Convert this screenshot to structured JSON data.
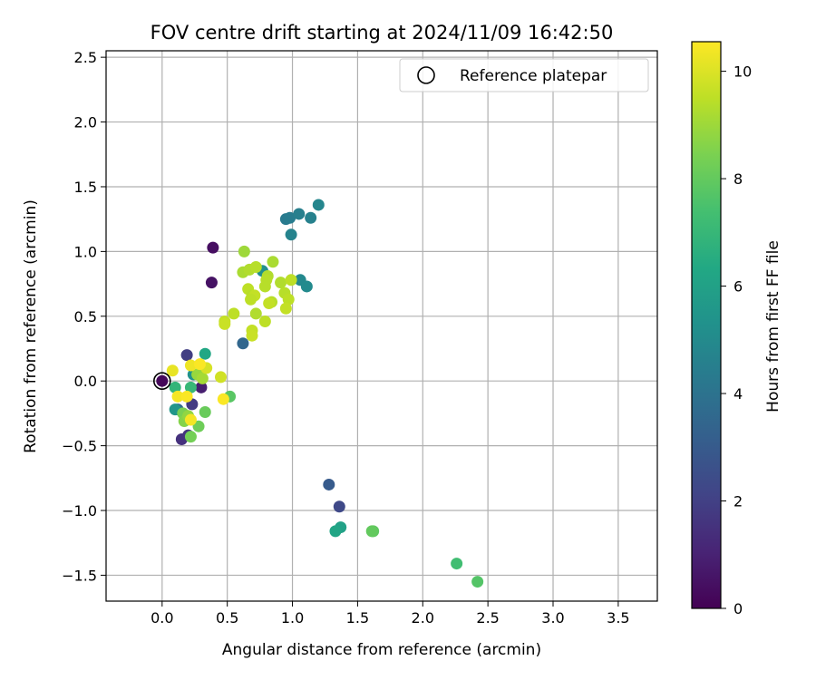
{
  "chart_data": {
    "type": "scatter",
    "title": "FOV centre drift starting at 2024/11/09 16:42:50",
    "xlabel": "Angular distance from reference (arcmin)",
    "ylabel": "Rotation from reference (arcmin)",
    "xlim": [
      -0.43,
      3.8
    ],
    "ylim": [
      -1.7,
      2.55
    ],
    "xticks": [
      0.0,
      0.5,
      1.0,
      1.5,
      2.0,
      2.5,
      3.0,
      3.5
    ],
    "xtick_labels": [
      "0.0",
      "0.5",
      "1.0",
      "1.5",
      "2.0",
      "2.5",
      "3.0",
      "3.5"
    ],
    "yticks": [
      -1.5,
      -1.0,
      -0.5,
      0.0,
      0.5,
      1.0,
      1.5,
      2.0,
      2.5
    ],
    "ytick_labels": [
      "−1.5",
      "−1.0",
      "−0.5",
      "0.0",
      "0.5",
      "1.0",
      "1.5",
      "2.0",
      "2.5"
    ],
    "grid": true,
    "legend": {
      "position": "upper-right",
      "entries": [
        "Reference platepar"
      ]
    },
    "reference": {
      "x": 0.0,
      "y": 0.0
    },
    "colorbar": {
      "label": "Hours from first FF file",
      "range": [
        0,
        10.55
      ],
      "ticks": [
        0,
        2,
        4,
        6,
        8,
        10
      ],
      "tick_labels": [
        "0",
        "2",
        "4",
        "6",
        "8",
        "10"
      ],
      "colormap": "viridis"
    },
    "points": [
      {
        "x": 0.39,
        "y": 1.03,
        "hours": 0.4
      },
      {
        "x": 0.38,
        "y": 0.76,
        "hours": 0.5
      },
      {
        "x": 0.0,
        "y": 0.0,
        "hours": 0.2
      },
      {
        "x": 0.3,
        "y": -0.05,
        "hours": 0.9
      },
      {
        "x": 0.15,
        "y": -0.45,
        "hours": 1.5
      },
      {
        "x": 0.2,
        "y": -0.42,
        "hours": 1.6
      },
      {
        "x": 0.19,
        "y": 0.2,
        "hours": 1.9
      },
      {
        "x": 0.23,
        "y": -0.18,
        "hours": 1.8
      },
      {
        "x": 1.36,
        "y": -0.97,
        "hours": 2.3
      },
      {
        "x": 1.28,
        "y": -0.8,
        "hours": 3.0
      },
      {
        "x": 0.62,
        "y": 0.29,
        "hours": 3.5
      },
      {
        "x": 0.12,
        "y": -0.22,
        "hours": 3.6
      },
      {
        "x": 0.95,
        "y": 1.25,
        "hours": 4.3
      },
      {
        "x": 0.98,
        "y": 1.26,
        "hours": 4.4
      },
      {
        "x": 1.05,
        "y": 1.29,
        "hours": 4.5
      },
      {
        "x": 1.14,
        "y": 1.26,
        "hours": 4.6
      },
      {
        "x": 1.2,
        "y": 1.36,
        "hours": 4.8
      },
      {
        "x": 0.99,
        "y": 1.13,
        "hours": 4.7
      },
      {
        "x": 1.06,
        "y": 0.78,
        "hours": 4.9
      },
      {
        "x": 1.11,
        "y": 0.73,
        "hours": 5.0
      },
      {
        "x": 0.77,
        "y": 0.85,
        "hours": 5.2
      },
      {
        "x": 0.24,
        "y": 0.05,
        "hours": 5.3
      },
      {
        "x": 0.1,
        "y": -0.22,
        "hours": 5.5
      },
      {
        "x": 1.37,
        "y": -1.13,
        "hours": 6.0
      },
      {
        "x": 1.33,
        "y": -1.16,
        "hours": 6.2
      },
      {
        "x": 0.33,
        "y": 0.21,
        "hours": 6.3
      },
      {
        "x": 0.1,
        "y": -0.05,
        "hours": 6.9
      },
      {
        "x": 0.22,
        "y": -0.05,
        "hours": 7.0
      },
      {
        "x": 2.26,
        "y": -1.41,
        "hours": 7.3
      },
      {
        "x": 2.42,
        "y": -1.55,
        "hours": 7.7
      },
      {
        "x": 1.62,
        "y": -1.16,
        "hours": 7.9
      },
      {
        "x": 1.61,
        "y": -1.16,
        "hours": 8.0
      },
      {
        "x": 0.52,
        "y": -0.12,
        "hours": 7.8
      },
      {
        "x": 0.33,
        "y": -0.24,
        "hours": 8.1
      },
      {
        "x": 0.28,
        "y": -0.35,
        "hours": 8.2
      },
      {
        "x": 0.22,
        "y": -0.43,
        "hours": 8.3
      },
      {
        "x": 0.16,
        "y": -0.25,
        "hours": 8.4
      },
      {
        "x": 0.17,
        "y": -0.31,
        "hours": 8.6
      },
      {
        "x": 0.2,
        "y": -0.27,
        "hours": 8.8
      },
      {
        "x": 0.27,
        "y": 0.05,
        "hours": 8.9
      },
      {
        "x": 0.31,
        "y": 0.02,
        "hours": 9.1
      },
      {
        "x": 0.63,
        "y": 1.0,
        "hours": 9.0
      },
      {
        "x": 0.62,
        "y": 0.84,
        "hours": 9.2
      },
      {
        "x": 0.67,
        "y": 0.86,
        "hours": 9.3
      },
      {
        "x": 0.72,
        "y": 0.88,
        "hours": 9.4
      },
      {
        "x": 0.85,
        "y": 0.92,
        "hours": 9.2
      },
      {
        "x": 0.81,
        "y": 0.81,
        "hours": 9.3
      },
      {
        "x": 0.8,
        "y": 0.78,
        "hours": 9.4
      },
      {
        "x": 0.91,
        "y": 0.76,
        "hours": 9.3
      },
      {
        "x": 0.99,
        "y": 0.78,
        "hours": 9.5
      },
      {
        "x": 0.79,
        "y": 0.73,
        "hours": 9.4
      },
      {
        "x": 0.66,
        "y": 0.71,
        "hours": 9.5
      },
      {
        "x": 0.69,
        "y": 0.66,
        "hours": 9.4
      },
      {
        "x": 0.71,
        "y": 0.66,
        "hours": 9.6
      },
      {
        "x": 0.68,
        "y": 0.63,
        "hours": 9.5
      },
      {
        "x": 0.84,
        "y": 0.61,
        "hours": 9.4
      },
      {
        "x": 0.82,
        "y": 0.6,
        "hours": 9.6
      },
      {
        "x": 0.94,
        "y": 0.68,
        "hours": 9.4
      },
      {
        "x": 0.97,
        "y": 0.63,
        "hours": 9.5
      },
      {
        "x": 0.95,
        "y": 0.56,
        "hours": 9.6
      },
      {
        "x": 0.72,
        "y": 0.52,
        "hours": 9.3
      },
      {
        "x": 0.55,
        "y": 0.52,
        "hours": 9.5
      },
      {
        "x": 0.48,
        "y": 0.46,
        "hours": 9.6
      },
      {
        "x": 0.48,
        "y": 0.44,
        "hours": 9.7
      },
      {
        "x": 0.79,
        "y": 0.46,
        "hours": 9.5
      },
      {
        "x": 0.69,
        "y": 0.39,
        "hours": 9.6
      },
      {
        "x": 0.69,
        "y": 0.35,
        "hours": 9.7
      },
      {
        "x": 0.45,
        "y": 0.03,
        "hours": 9.8
      },
      {
        "x": 0.34,
        "y": 0.1,
        "hours": 9.9
      },
      {
        "x": 0.08,
        "y": 0.08,
        "hours": 10.2
      },
      {
        "x": 0.22,
        "y": 0.12,
        "hours": 10.3
      },
      {
        "x": 0.29,
        "y": 0.13,
        "hours": 10.5
      },
      {
        "x": 0.12,
        "y": -0.12,
        "hours": 10.4
      },
      {
        "x": 0.19,
        "y": -0.12,
        "hours": 10.5
      },
      {
        "x": 0.47,
        "y": -0.14,
        "hours": 10.5
      },
      {
        "x": 0.22,
        "y": -0.3,
        "hours": 10.4
      }
    ]
  }
}
